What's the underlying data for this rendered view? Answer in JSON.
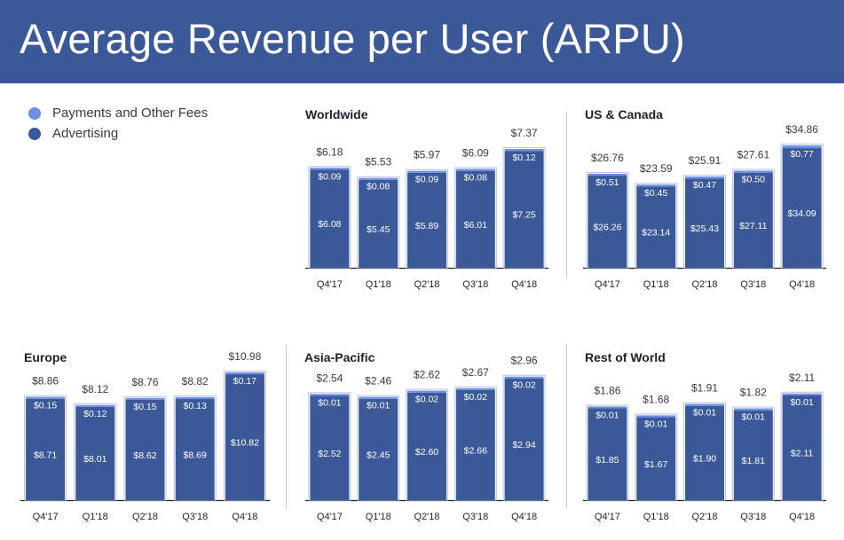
{
  "title": "Average Revenue per User (ARPU)",
  "legend": {
    "fees_label": "Payments and Other Fees",
    "ads_label": "Advertising"
  },
  "colors": {
    "header": "#3b5998",
    "advertising": "#3b5998",
    "fees": "#6d8fe6",
    "text": "#333a4a"
  },
  "chart_data": [
    {
      "type": "bar",
      "title": "Worldwide",
      "categories": [
        "Q4'17",
        "Q1'18",
        "Q2'18",
        "Q3'18",
        "Q4'18"
      ],
      "series": [
        {
          "name": "Advertising",
          "values": [
            6.08,
            5.45,
            5.89,
            6.01,
            7.25
          ],
          "labels": [
            "$6.08",
            "$5.45",
            "$5.89",
            "$6.01",
            "$7.25"
          ]
        },
        {
          "name": "Payments and Other Fees",
          "values": [
            0.09,
            0.08,
            0.09,
            0.08,
            0.12
          ],
          "labels": [
            "$0.09",
            "$0.08",
            "$0.09",
            "$0.08",
            "$0.12"
          ]
        }
      ],
      "totals": [
        6.18,
        5.53,
        5.97,
        6.09,
        7.37
      ],
      "total_labels": [
        "$6.18",
        "$5.53",
        "$5.97",
        "$6.09",
        "$7.37"
      ],
      "xlabel": "",
      "ylabel": "",
      "stacked": true
    },
    {
      "type": "bar",
      "title": "US & Canada",
      "categories": [
        "Q4'17",
        "Q1'18",
        "Q2'18",
        "Q3'18",
        "Q4'18"
      ],
      "series": [
        {
          "name": "Advertising",
          "values": [
            26.26,
            23.14,
            25.43,
            27.11,
            34.09
          ],
          "labels": [
            "$26.26",
            "$23.14",
            "$25.43",
            "$27.11",
            "$34.09"
          ]
        },
        {
          "name": "Payments and Other Fees",
          "values": [
            0.51,
            0.45,
            0.47,
            0.5,
            0.77
          ],
          "labels": [
            "$0.51",
            "$0.45",
            "$0.47",
            "$0.50",
            "$0.77"
          ]
        }
      ],
      "totals": [
        26.76,
        23.59,
        25.91,
        27.61,
        34.86
      ],
      "total_labels": [
        "$26.76",
        "$23.59",
        "$25.91",
        "$27.61",
        "$34.86"
      ],
      "xlabel": "",
      "ylabel": "",
      "stacked": true
    },
    {
      "type": "bar",
      "title": "Europe",
      "categories": [
        "Q4'17",
        "Q1'18",
        "Q2'18",
        "Q3'18",
        "Q4'18"
      ],
      "series": [
        {
          "name": "Advertising",
          "values": [
            8.71,
            8.01,
            8.62,
            8.69,
            10.82
          ],
          "labels": [
            "$8.71",
            "$8.01",
            "$8.62",
            "$8.69",
            "$10.82"
          ]
        },
        {
          "name": "Payments and Other Fees",
          "values": [
            0.15,
            0.12,
            0.15,
            0.13,
            0.17
          ],
          "labels": [
            "$0.15",
            "$0.12",
            "$0.15",
            "$0.13",
            "$0.17"
          ]
        }
      ],
      "totals": [
        8.86,
        8.12,
        8.76,
        8.82,
        10.98
      ],
      "total_labels": [
        "$8.86",
        "$8.12",
        "$8.76",
        "$8.82",
        "$10.98"
      ],
      "xlabel": "",
      "ylabel": "",
      "stacked": true
    },
    {
      "type": "bar",
      "title": "Asia-Pacific",
      "categories": [
        "Q4'17",
        "Q1'18",
        "Q2'18",
        "Q3'18",
        "Q4'18"
      ],
      "series": [
        {
          "name": "Advertising",
          "values": [
            2.52,
            2.45,
            2.6,
            2.66,
            2.94
          ],
          "labels": [
            "$2.52",
            "$2.45",
            "$2.60",
            "$2.66",
            "$2.94"
          ]
        },
        {
          "name": "Payments and Other Fees",
          "values": [
            0.01,
            0.01,
            0.02,
            0.02,
            0.02
          ],
          "labels": [
            "$0.01",
            "$0.01",
            "$0.02",
            "$0.02",
            "$0.02"
          ]
        }
      ],
      "totals": [
        2.54,
        2.46,
        2.62,
        2.67,
        2.96
      ],
      "total_labels": [
        "$2.54",
        "$2.46",
        "$2.62",
        "$2.67",
        "$2.96"
      ],
      "xlabel": "",
      "ylabel": "",
      "stacked": true
    },
    {
      "type": "bar",
      "title": "Rest of World",
      "categories": [
        "Q4'17",
        "Q1'18",
        "Q2'18",
        "Q3'18",
        "Q4'18"
      ],
      "series": [
        {
          "name": "Advertising",
          "values": [
            1.85,
            1.67,
            1.9,
            1.81,
            2.11
          ],
          "labels": [
            "$1.85",
            "$1.67",
            "$1.90",
            "$1.81",
            "$2.11"
          ]
        },
        {
          "name": "Payments and Other Fees",
          "values": [
            0.01,
            0.01,
            0.01,
            0.01,
            0.01
          ],
          "labels": [
            "$0.01",
            "$0.01",
            "$0.01",
            "$0.01",
            "$0.01"
          ]
        }
      ],
      "totals": [
        1.86,
        1.68,
        1.91,
        1.82,
        2.11
      ],
      "total_labels": [
        "$1.86",
        "$1.68",
        "$1.91",
        "$1.82",
        "$2.11"
      ],
      "xlabel": "",
      "ylabel": "",
      "stacked": true
    }
  ]
}
